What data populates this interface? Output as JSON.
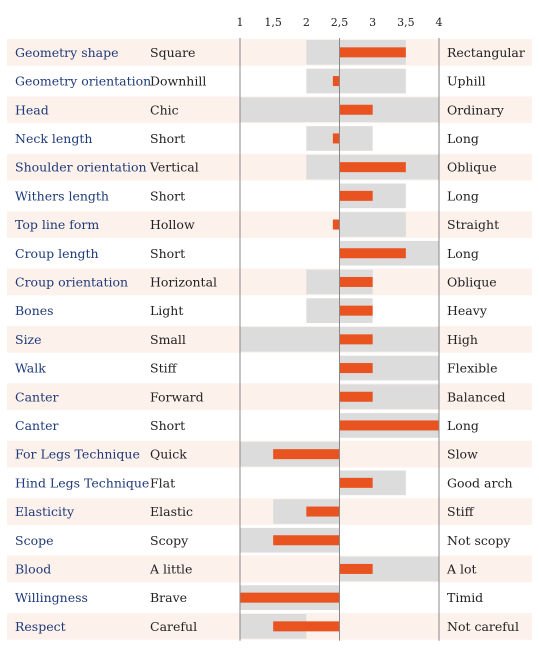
{
  "chart_data": {
    "type": "bar",
    "title": "",
    "xlabel": "",
    "ylabel": "",
    "xlim": [
      1,
      4
    ],
    "ticks": [
      "1",
      "1,5",
      "2",
      "2,5",
      "3",
      "3,5",
      "4"
    ],
    "tick_values": [
      1,
      1.5,
      2,
      2.5,
      3,
      3.5,
      4
    ],
    "baseline": 2.5,
    "colors": {
      "bar": "#e8531f",
      "range": "#dcdcdc",
      "row_band": "#fdf1ec",
      "trait_text": "#1f3a78",
      "axis_line": "#888888"
    },
    "rows": [
      {
        "trait": "Geometry shape",
        "low": "Square",
        "high": "Rectangular",
        "value": 3.5,
        "range": [
          2,
          3.5
        ]
      },
      {
        "trait": "Geometry orientation",
        "low": "Downhill",
        "high": "Uphill",
        "value": 2.4,
        "range": [
          2,
          3.5
        ]
      },
      {
        "trait": "Head",
        "low": "Chic",
        "high": "Ordinary",
        "value": 3,
        "range": [
          1,
          4
        ]
      },
      {
        "trait": "Neck length",
        "low": "Short",
        "high": "Long",
        "value": 2.4,
        "range": [
          2,
          3
        ]
      },
      {
        "trait": "Shoulder orientation",
        "low": "Vertical",
        "high": "Oblique",
        "value": 3.5,
        "range": [
          2,
          4
        ]
      },
      {
        "trait": "Withers length",
        "low": "Short",
        "high": "Long",
        "value": 3,
        "range": [
          2.5,
          3.5
        ]
      },
      {
        "trait": "Top line form",
        "low": "Hollow",
        "high": "Straight",
        "value": 2.4,
        "range": [
          2.5,
          3.5
        ]
      },
      {
        "trait": "Croup length",
        "low": "Short",
        "high": "Long",
        "value": 3.5,
        "range": [
          2.5,
          4
        ]
      },
      {
        "trait": "Croup orientation",
        "low": "Horizontal",
        "high": "Oblique",
        "value": 3,
        "range": [
          2,
          3
        ]
      },
      {
        "trait": "Bones",
        "low": "Light",
        "high": "Heavy",
        "value": 3,
        "range": [
          2,
          3
        ]
      },
      {
        "trait": "Size",
        "low": "Small",
        "high": "High",
        "value": 3,
        "range": [
          1,
          4
        ]
      },
      {
        "trait": "Walk",
        "low": "Stiff",
        "high": "Flexible",
        "value": 3,
        "range": [
          2.5,
          4
        ]
      },
      {
        "trait": "Canter",
        "low": "Forward",
        "high": "Balanced",
        "value": 3,
        "range": [
          2.5,
          4
        ]
      },
      {
        "trait": "Canter",
        "low": "Short",
        "high": "Long",
        "value": 4,
        "range": [
          2.5,
          4
        ]
      },
      {
        "trait": "For Legs Technique",
        "low": "Quick",
        "high": "Slow",
        "value": 1.5,
        "range": [
          1,
          2.5
        ]
      },
      {
        "trait": "Hind Legs Technique",
        "low": "Flat",
        "high": "Good arch",
        "value": 3,
        "range": [
          2.5,
          3.5
        ]
      },
      {
        "trait": "Elasticity",
        "low": "Elastic",
        "high": "Stiff",
        "value": 2,
        "range": [
          1.5,
          2.5
        ]
      },
      {
        "trait": "Scope",
        "low": "Scopy",
        "high": "Not scopy",
        "value": 1.5,
        "range": [
          1,
          2.5
        ]
      },
      {
        "trait": "Blood",
        "low": "A little",
        "high": "A lot",
        "value": 3,
        "range": [
          2.5,
          4
        ]
      },
      {
        "trait": "Willingness",
        "low": "Brave",
        "high": "Timid",
        "value": 1,
        "range": [
          1,
          2.5
        ]
      },
      {
        "trait": "Respect",
        "low": "Careful",
        "high": "Not careful",
        "value": 1.5,
        "range": [
          1,
          2
        ]
      }
    ]
  }
}
